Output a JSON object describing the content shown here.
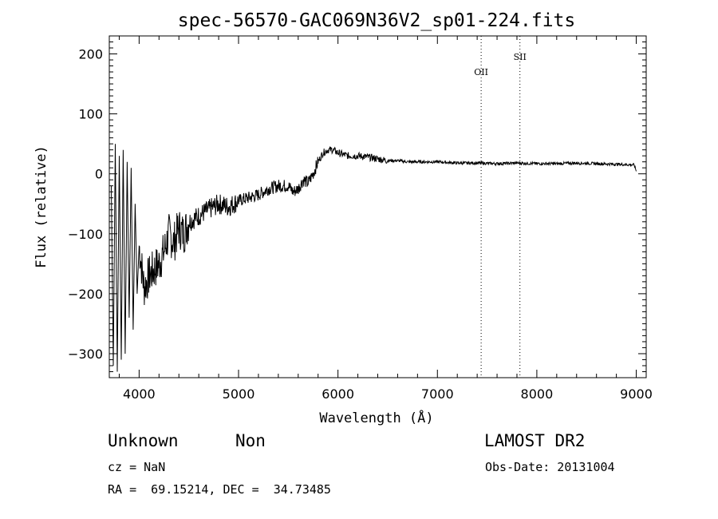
{
  "chart_data": {
    "type": "line",
    "title": "spec-56570-GAC069N36V2_sp01-224.fits",
    "xlabel": "Wavelength (Å)",
    "ylabel": "Flux (relative)",
    "xlim": [
      3700,
      9100
    ],
    "ylim": [
      -340,
      230
    ],
    "x_ticks": [
      4000,
      5000,
      6000,
      7000,
      8000,
      9000
    ],
    "y_ticks": [
      -300,
      -200,
      -100,
      0,
      100,
      200
    ],
    "x_tick_labels": [
      "4000",
      "5000",
      "6000",
      "7000",
      "8000",
      "9000"
    ],
    "y_tick_labels": [
      "−300",
      "−200",
      "−100",
      "0",
      "100",
      "200"
    ],
    "grid": false,
    "series": [
      {
        "x": [
          3720,
          3740,
          3760,
          3780,
          3800,
          3820,
          3840,
          3860,
          3880,
          3900,
          3920,
          3940,
          3960,
          3980,
          4000,
          4050,
          4100,
          4150,
          4200,
          4250,
          4300,
          4350,
          4400,
          4450,
          4500,
          4600,
          4700,
          4800,
          4900,
          5000,
          5100,
          5200,
          5300,
          5400,
          5500,
          5550,
          5600,
          5650,
          5700,
          5750,
          5800,
          5850,
          5900,
          5950,
          6000,
          6100,
          6200,
          6300,
          6400,
          6500,
          6600,
          6700,
          6800,
          6900,
          7000,
          7200,
          7400,
          7600,
          7800,
          8000,
          8200,
          8400,
          8600,
          8800,
          8980,
          9000
        ],
        "y": [
          -20,
          -320,
          50,
          -330,
          30,
          -310,
          40,
          -300,
          20,
          -240,
          10,
          -260,
          -50,
          -200,
          -120,
          -190,
          -170,
          -160,
          -150,
          -130,
          -100,
          -115,
          -90,
          -100,
          -80,
          -70,
          -60,
          -50,
          -55,
          -45,
          -40,
          -35,
          -25,
          -20,
          -20,
          -30,
          -25,
          -10,
          -15,
          0,
          20,
          35,
          40,
          40,
          35,
          30,
          30,
          28,
          25,
          22,
          22,
          20,
          20,
          20,
          20,
          18,
          18,
          17,
          18,
          17,
          17,
          18,
          17,
          16,
          15,
          5
        ]
      }
    ],
    "annotations": [
      {
        "text": "OII",
        "x": 7440,
        "label_y": 165
      },
      {
        "text": "SII",
        "x": 7830,
        "label_y": 190
      }
    ]
  },
  "info": {
    "object_class": "Unknown",
    "object_subclass": "Non",
    "survey": "LAMOST DR2",
    "cz": "cz = NaN",
    "obs_date": "Obs-Date: 20131004",
    "coords": "RA =  69.15214, DEC =  34.73485"
  }
}
